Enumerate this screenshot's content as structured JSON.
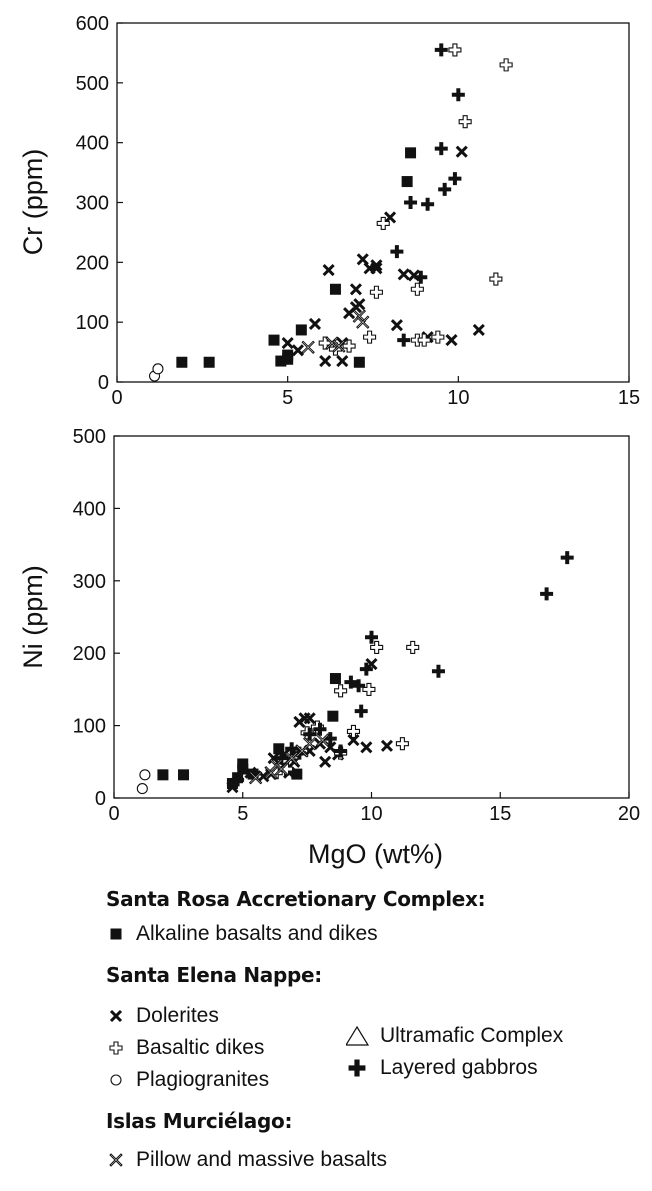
{
  "chart_data": [
    {
      "type": "scatter",
      "title": "",
      "xlabel": "",
      "ylabel": "Cr (ppm)",
      "xlim": [
        0,
        15
      ],
      "ylim": [
        0,
        600
      ],
      "xticks": [
        "0",
        "5",
        "10",
        "15"
      ],
      "yticks": [
        "0",
        "100",
        "200",
        "300",
        "400",
        "500",
        "600"
      ],
      "grid": false,
      "series": [
        {
          "name": "Alkaline basalts and dikes",
          "marker": "square",
          "points": [
            [
              1.9,
              33
            ],
            [
              2.7,
              33
            ],
            [
              4.6,
              70
            ],
            [
              4.8,
              35
            ],
            [
              5.0,
              38
            ],
            [
              5.0,
              45
            ],
            [
              5.4,
              87
            ],
            [
              6.4,
              155
            ],
            [
              7.1,
              33
            ],
            [
              8.5,
              335
            ],
            [
              8.6,
              383
            ]
          ]
        },
        {
          "name": "Dolerites",
          "marker": "x",
          "points": [
            [
              5.0,
              65
            ],
            [
              5.3,
              53
            ],
            [
              5.8,
              97
            ],
            [
              6.1,
              35
            ],
            [
              6.2,
              187
            ],
            [
              6.6,
              35
            ],
            [
              6.6,
              65
            ],
            [
              6.8,
              115
            ],
            [
              7.0,
              155
            ],
            [
              7.0,
              125
            ],
            [
              7.1,
              130
            ],
            [
              7.2,
              205
            ],
            [
              7.4,
              190
            ],
            [
              7.6,
              190
            ],
            [
              7.6,
              195
            ],
            [
              8.0,
              275
            ],
            [
              8.2,
              95
            ],
            [
              8.4,
              180
            ],
            [
              8.7,
              178
            ],
            [
              9.1,
              75
            ],
            [
              9.8,
              70
            ],
            [
              10.1,
              385
            ],
            [
              10.6,
              87
            ]
          ]
        },
        {
          "name": "Basaltic dikes",
          "marker": "open-cross",
          "points": [
            [
              6.1,
              65
            ],
            [
              6.4,
              55
            ],
            [
              6.8,
              60
            ],
            [
              7.4,
              75
            ],
            [
              7.6,
              150
            ],
            [
              7.8,
              265
            ],
            [
              8.8,
              70
            ],
            [
              8.8,
              155
            ],
            [
              9.0,
              70
            ],
            [
              9.4,
              75
            ],
            [
              9.9,
              555
            ],
            [
              10.2,
              435
            ],
            [
              11.1,
              172
            ],
            [
              11.4,
              530
            ]
          ]
        },
        {
          "name": "Plagiogranites",
          "marker": "circle",
          "points": [
            [
              1.1,
              10
            ],
            [
              1.2,
              22
            ]
          ]
        },
        {
          "name": "Layered gabbros",
          "marker": "filled-cross",
          "points": [
            [
              8.2,
              218
            ],
            [
              8.4,
              70
            ],
            [
              8.6,
              300
            ],
            [
              8.9,
              175
            ],
            [
              9.1,
              297
            ],
            [
              9.5,
              555
            ],
            [
              9.5,
              390
            ],
            [
              9.6,
              322
            ],
            [
              9.9,
              340
            ],
            [
              10.0,
              480
            ]
          ]
        },
        {
          "name": "Pillow and massive basalts",
          "marker": "crossed-x",
          "points": [
            [
              5.6,
              58
            ],
            [
              6.3,
              65
            ],
            [
              6.5,
              60
            ],
            [
              7.1,
              110
            ],
            [
              7.2,
              100
            ]
          ]
        }
      ]
    },
    {
      "type": "scatter",
      "title": "",
      "xlabel": "MgO (wt%)",
      "ylabel": "Ni (ppm)",
      "xlim": [
        0,
        20
      ],
      "ylim": [
        0,
        500
      ],
      "xticks": [
        "0",
        "5",
        "10",
        "15",
        "20"
      ],
      "yticks": [
        "0",
        "100",
        "200",
        "300",
        "400",
        "500"
      ],
      "grid": false,
      "series": [
        {
          "name": "Alkaline basalts and dikes",
          "marker": "square",
          "points": [
            [
              1.9,
              32
            ],
            [
              2.7,
              32
            ],
            [
              4.6,
              20
            ],
            [
              4.8,
              28
            ],
            [
              5.0,
              40
            ],
            [
              5.0,
              47
            ],
            [
              5.4,
              33
            ],
            [
              6.4,
              68
            ],
            [
              7.1,
              33
            ],
            [
              8.5,
              113
            ],
            [
              8.6,
              165
            ]
          ]
        },
        {
          "name": "Dolerites",
          "marker": "x",
          "points": [
            [
              4.6,
              15
            ],
            [
              5.3,
              35
            ],
            [
              5.8,
              30
            ],
            [
              6.1,
              33
            ],
            [
              6.2,
              55
            ],
            [
              6.6,
              60
            ],
            [
              6.6,
              45
            ],
            [
              6.8,
              35
            ],
            [
              7.0,
              50
            ],
            [
              7.2,
              105
            ],
            [
              7.4,
              110
            ],
            [
              7.6,
              65
            ],
            [
              8.0,
              75
            ],
            [
              8.2,
              50
            ],
            [
              8.4,
              70
            ],
            [
              8.7,
              60
            ],
            [
              9.3,
              80
            ],
            [
              9.8,
              70
            ],
            [
              10.0,
              185
            ],
            [
              10.6,
              72
            ],
            [
              7.6,
              110
            ]
          ]
        },
        {
          "name": "Basaltic dikes",
          "marker": "open-cross",
          "points": [
            [
              6.3,
              35
            ],
            [
              6.7,
              40
            ],
            [
              7.1,
              62
            ],
            [
              7.5,
              90
            ],
            [
              7.9,
              98
            ],
            [
              8.8,
              148
            ],
            [
              8.8,
              62
            ],
            [
              9.3,
              92
            ],
            [
              9.9,
              150
            ],
            [
              10.2,
              208
            ],
            [
              11.2,
              75
            ],
            [
              11.6,
              208
            ]
          ]
        },
        {
          "name": "Plagiogranites",
          "marker": "circle",
          "points": [
            [
              1.1,
              13
            ],
            [
              1.2,
              32
            ]
          ]
        },
        {
          "name": "Layered gabbros",
          "marker": "filled-cross",
          "points": [
            [
              4.8,
              25
            ],
            [
              6.5,
              55
            ],
            [
              6.9,
              68
            ],
            [
              7.2,
              62
            ],
            [
              7.6,
              88
            ],
            [
              8.0,
              95
            ],
            [
              8.4,
              82
            ],
            [
              8.8,
              65
            ],
            [
              9.2,
              160
            ],
            [
              9.5,
              155
            ],
            [
              9.6,
              120
            ],
            [
              9.8,
              178
            ],
            [
              10.0,
              222
            ],
            [
              12.6,
              175
            ],
            [
              16.8,
              282
            ],
            [
              17.6,
              332
            ]
          ]
        },
        {
          "name": "Pillow and massive basalts",
          "marker": "crossed-x",
          "points": [
            [
              5.5,
              28
            ],
            [
              6.1,
              35
            ],
            [
              6.3,
              45
            ],
            [
              6.5,
              40
            ],
            [
              6.9,
              55
            ],
            [
              7.3,
              65
            ],
            [
              7.6,
              75
            ],
            [
              8.1,
              80
            ]
          ]
        }
      ]
    }
  ],
  "legend": {
    "group1_title": "Santa Rosa Accretionary Complex:",
    "alkaline": "Alkaline basalts and dikes",
    "group2_title": "Santa Elena Nappe:",
    "dolerites": "Dolerites",
    "basaltic_dikes": "Basaltic dikes",
    "plagiogranites": "Plagiogranites",
    "ultramafic": "Ultramafic Complex",
    "gabbros": "Layered gabbros",
    "group3_title": "Islas Murciélago:",
    "pillow": "Pillow and massive basalts"
  }
}
